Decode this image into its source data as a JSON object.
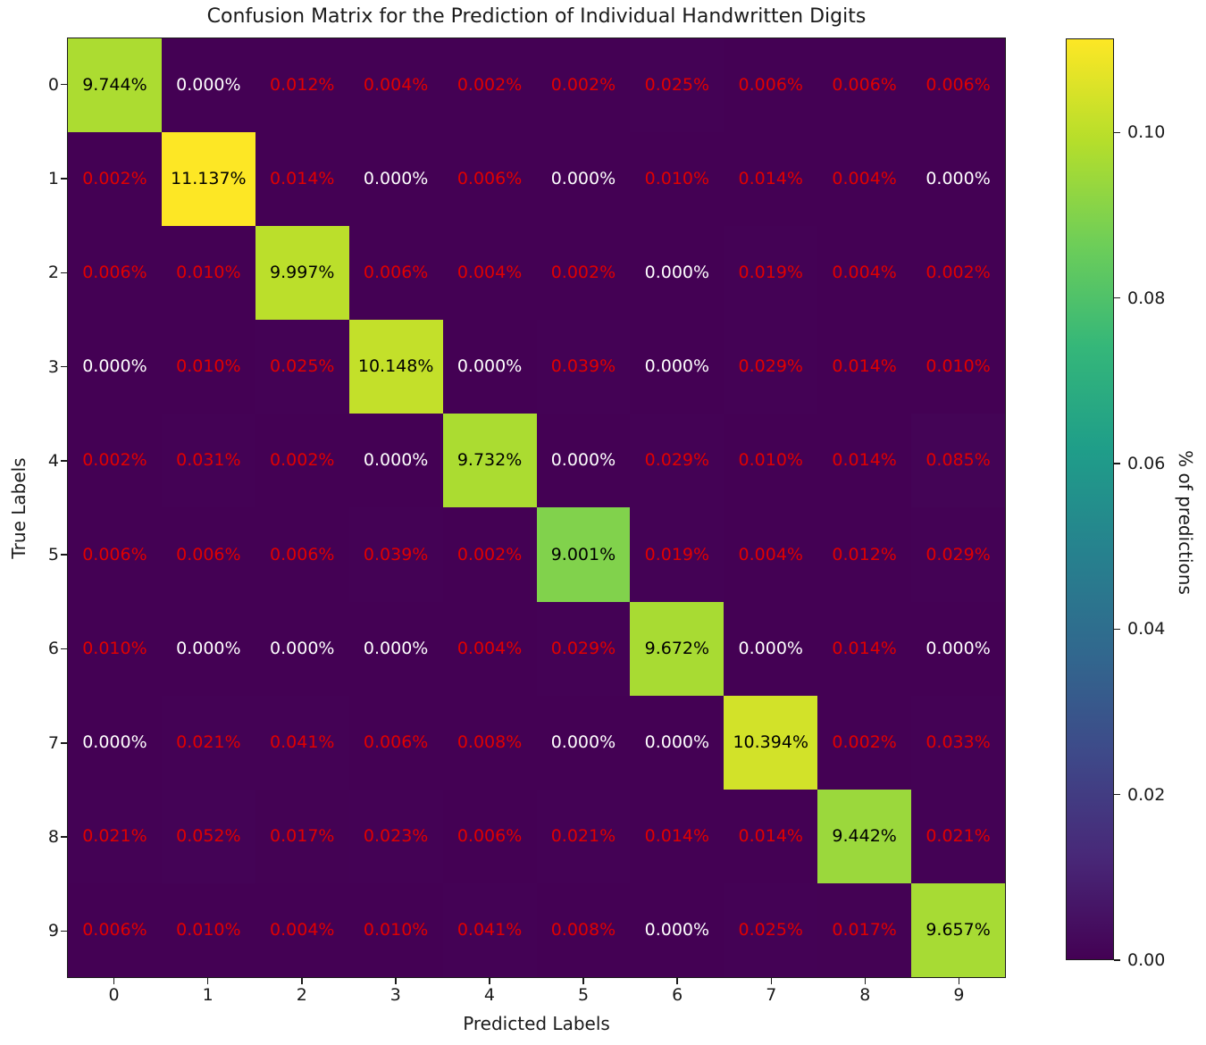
{
  "figure": {
    "title": "Confusion Matrix for the Prediction of Individual Handwritten Digits",
    "xlabel": "Predicted Labels",
    "ylabel": "True Labels"
  },
  "chart_data": {
    "type": "heatmap",
    "title": "Confusion Matrix for the Prediction of Individual Handwritten Digits",
    "xlabel": "Predicted Labels",
    "ylabel": "True Labels",
    "x_categories": [
      "0",
      "1",
      "2",
      "3",
      "4",
      "5",
      "6",
      "7",
      "8",
      "9"
    ],
    "y_categories": [
      "0",
      "1",
      "2",
      "3",
      "4",
      "5",
      "6",
      "7",
      "8",
      "9"
    ],
    "values_percent": [
      [
        9.744,
        0.0,
        0.012,
        0.004,
        0.002,
        0.002,
        0.025,
        0.006,
        0.006,
        0.006
      ],
      [
        0.002,
        11.137,
        0.014,
        0.0,
        0.006,
        0.0,
        0.01,
        0.014,
        0.004,
        0.0
      ],
      [
        0.006,
        0.01,
        9.997,
        0.006,
        0.004,
        0.002,
        0.0,
        0.019,
        0.004,
        0.002
      ],
      [
        0.0,
        0.01,
        0.025,
        10.148,
        0.0,
        0.039,
        0.0,
        0.029,
        0.014,
        0.01
      ],
      [
        0.002,
        0.031,
        0.002,
        0.0,
        9.732,
        0.0,
        0.029,
        0.01,
        0.014,
        0.085
      ],
      [
        0.006,
        0.006,
        0.006,
        0.039,
        0.002,
        9.001,
        0.019,
        0.004,
        0.012,
        0.029
      ],
      [
        0.01,
        0.0,
        0.0,
        0.0,
        0.004,
        0.029,
        9.672,
        0.0,
        0.014,
        0.0
      ],
      [
        0.0,
        0.021,
        0.041,
        0.006,
        0.008,
        0.0,
        0.0,
        10.394,
        0.002,
        0.033
      ],
      [
        0.021,
        0.052,
        0.017,
        0.023,
        0.006,
        0.021,
        0.014,
        0.014,
        9.442,
        0.021
      ],
      [
        0.006,
        0.01,
        0.004,
        0.01,
        0.041,
        0.008,
        0.0,
        0.025,
        0.017,
        9.657
      ]
    ],
    "value_format": "percent_3dp",
    "colormap": "viridis",
    "colormap_stops": [
      "#440154",
      "#482878",
      "#3e4989",
      "#31688e",
      "#26828e",
      "#1f9e89",
      "#35b779",
      "#6ece58",
      "#b5de2b",
      "#fde725"
    ],
    "vmin": 0.0,
    "vmax": 0.11137,
    "grid": false,
    "colorbar": {
      "label": "% of predictions",
      "tick_values": [
        0.0,
        0.02,
        0.04,
        0.06,
        0.08,
        0.1
      ],
      "tick_labels": [
        "0.00",
        "0.02",
        "0.04",
        "0.06",
        "0.08",
        "0.10"
      ]
    },
    "cell_text_colors": {
      "diagonal": "#000000",
      "zero_offdiag": "#ffffff",
      "nonzero_offdiag": "#e00000"
    }
  }
}
